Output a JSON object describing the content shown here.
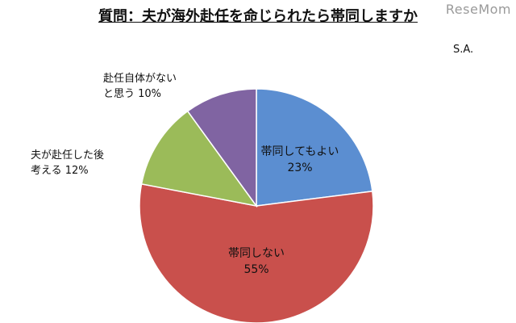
{
  "header": {
    "title": "質問：夫が海外赴任を命じられたら帯同しますか",
    "watermark": "ReseMom",
    "note": "S.A."
  },
  "chart_data": {
    "type": "pie",
    "title": "質問：夫が海外赴任を命じられたら帯同しますか",
    "start": "12 o'clock, clockwise",
    "slices": [
      {
        "name": "帯同してもよい",
        "value": 23,
        "label": "23%",
        "color": "#5b8ed1"
      },
      {
        "name": "帯同しない",
        "value": 55,
        "label": "55%",
        "color": "#c9504c"
      },
      {
        "name": "夫が赴任した後考える",
        "value": 12,
        "label": "12%",
        "color": "#9bbb59",
        "label_lines": [
          "夫が赴任した後",
          "考える 12%"
        ]
      },
      {
        "name": "赴任自体がないと思う",
        "value": 10,
        "label": "10%",
        "color": "#8064a2",
        "label_lines": [
          "赴任自体がない",
          "と思う 10%"
        ]
      }
    ]
  }
}
